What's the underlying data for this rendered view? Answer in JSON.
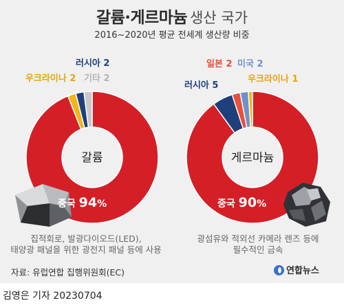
{
  "header": {
    "title_bold": "갈륨·게르마늄",
    "title_light": "생산 국가",
    "subtitle": "2016~2020년 평균 전세계 생산량 비중"
  },
  "chart_data": [
    {
      "type": "pie",
      "center_label": "갈륨",
      "slices": [
        {
          "label": "중국",
          "value": 94,
          "display": "중국",
          "value_text": "94",
          "unit": "%",
          "color": "#d41f27"
        },
        {
          "label": "우크라이나",
          "value": 2,
          "display": "우크라이나 2",
          "color": "#f2b51c"
        },
        {
          "label": "러시아",
          "value": 2,
          "display": "러시아 2",
          "color": "#1e3f7a"
        },
        {
          "label": "기타",
          "value": 2,
          "display": "기타 2",
          "color": "#c8c8c8"
        }
      ],
      "caption": [
        "집적회로, 발광다이오드(LED),",
        "태양광 패널을 위한 광전지 패널 등에 사용"
      ]
    },
    {
      "type": "pie",
      "center_label": "게르마늄",
      "slices": [
        {
          "label": "중국",
          "value": 90,
          "display": "중국",
          "value_text": "90",
          "unit": "%",
          "color": "#d41f27"
        },
        {
          "label": "러시아",
          "value": 5,
          "display": "러시아 5",
          "color": "#1e3f7a"
        },
        {
          "label": "일본",
          "value": 2,
          "display": "일본 2",
          "color": "#e94f3b"
        },
        {
          "label": "미국",
          "value": 2,
          "display": "미국 2",
          "color": "#6f93c9"
        },
        {
          "label": "우크라이나",
          "value": 1,
          "display": "우크라이나 1",
          "color": "#f2b51c"
        }
      ],
      "caption": [
        "광섬유와 적외선 카메라 렌즈 등에",
        "필수적인 금속"
      ]
    }
  ],
  "source": "자료: 유럽연합 집행위원회(EC)",
  "logo_text": "연합뉴스",
  "byline": "김영은 기자  20230704"
}
